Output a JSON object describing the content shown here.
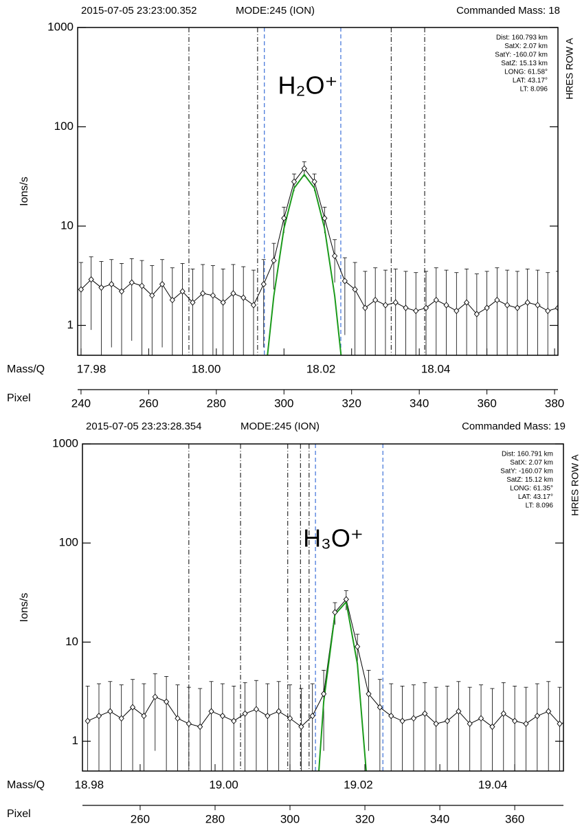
{
  "chart_data": [
    {
      "type": "line",
      "title_left": "2015-07-05 23:23:00.352",
      "title_mid": "MODE:245 (ION)",
      "title_right": "Commanded Mass: 18",
      "y_label": "Ions/s",
      "x_label": "Pixel",
      "x2_label": "Mass/Q",
      "annotation": "H₂O⁺",
      "side_label": "HRES ROW A",
      "info": [
        "Dist: 160.793 km",
        "SatX: 2.07 km",
        "SatY: -160.07 km",
        "SatZ: 15.13 km",
        "LONG: 61.58°",
        "LAT:  43.17°",
        "LT:   8.096"
      ],
      "log_y": true,
      "ylim": [
        0.5,
        1000
      ],
      "yticks": [
        1,
        10,
        100,
        1000
      ],
      "xlim": [
        239,
        381
      ],
      "xticks": [
        240,
        260,
        280,
        300,
        320,
        340,
        360,
        380
      ],
      "x2lim": [
        17.9776,
        18.0613
      ],
      "x2ticks": [
        {
          "value": 17.98,
          "label": "17.98"
        },
        {
          "value": 18.0,
          "label": "18.00"
        },
        {
          "value": 18.02,
          "label": "18.02"
        },
        {
          "value": 18.04,
          "label": "18.04"
        }
      ],
      "color": "#000000",
      "x": [
        240,
        243,
        246,
        249,
        252,
        255,
        258,
        261,
        264,
        267,
        270,
        273,
        276,
        279,
        282,
        285,
        288,
        291,
        294,
        297,
        300,
        303,
        306,
        309,
        312,
        315,
        318,
        321,
        324,
        327,
        330,
        333,
        336,
        339,
        342,
        345,
        348,
        351,
        354,
        357,
        360,
        363,
        366,
        369,
        372,
        375,
        378,
        381
      ],
      "values": [
        2.3,
        2.9,
        2.4,
        2.6,
        2.2,
        2.7,
        2.5,
        2.0,
        2.6,
        1.8,
        2.2,
        1.7,
        2.1,
        2.0,
        1.7,
        2.1,
        1.9,
        1.6,
        2.6,
        4.5,
        12,
        28,
        38,
        28,
        12,
        5,
        2.8,
        2.3,
        1.5,
        1.8,
        1.6,
        1.7,
        1.5,
        1.4,
        1.5,
        1.8,
        1.6,
        1.4,
        1.7,
        1.3,
        1.5,
        1.8,
        1.6,
        1.5,
        1.7,
        1.6,
        1.4,
        1.5
      ],
      "errors": [
        2,
        2,
        2,
        2,
        2,
        2,
        2,
        2,
        2,
        2,
        2,
        2,
        2,
        2,
        2,
        2,
        2,
        2,
        2,
        2.2,
        3.5,
        5.5,
        6.5,
        5.5,
        3.5,
        2.3,
        2,
        2,
        2,
        2,
        2,
        2,
        2,
        2,
        2,
        2,
        2,
        2,
        2,
        2,
        2,
        2,
        2,
        2,
        2,
        2,
        2,
        2
      ],
      "fit": {
        "color": "#1a9a1a",
        "values": [
          null,
          null,
          null,
          null,
          null,
          null,
          null,
          null,
          null,
          null,
          null,
          null,
          null,
          null,
          null,
          null,
          null,
          null,
          0.22,
          1.98,
          9.5,
          24.1,
          33,
          24.1,
          9.5,
          1.98,
          0.22,
          null,
          null,
          null,
          null,
          null,
          null,
          null,
          null,
          null,
          null,
          null,
          null,
          null,
          null,
          null,
          null,
          null,
          null,
          null,
          null,
          null
        ]
      },
      "cut_lines": {
        "color": "#000000",
        "values": [
          271.9,
          292.2,
          331.7,
          341.6
        ]
      },
      "window_lines": {
        "color": "#3a6fd8",
        "values": [
          294.2,
          316.8
        ]
      }
    },
    {
      "type": "line",
      "title_left": "2015-07-05 23:23:28.354",
      "title_mid": "MODE:245 (ION)",
      "title_right": "Commanded Mass: 19",
      "y_label": "Ions/s",
      "x_label": "Pixel",
      "x2_label": "Mass/Q",
      "annotation": "H₃O⁺",
      "side_label": "HRES ROW A",
      "info": [
        "Dist: 160.791 km",
        "SatX: 2.07 km",
        "SatY: -160.07 km",
        "SatZ: 15.12 km",
        "LONG: 61.35°",
        "LAT:  43.17°",
        "LT:   8.096"
      ],
      "log_y": true,
      "ylim": [
        0.5,
        1000
      ],
      "yticks": [
        1,
        10,
        100,
        1000
      ],
      "xlim": [
        244.6,
        373
      ],
      "xticks": [
        260,
        280,
        300,
        320,
        340,
        360
      ],
      "x2lim": [
        18.979,
        19.0505
      ],
      "x2ticks": [
        {
          "value": 18.98,
          "label": "18.98"
        },
        {
          "value": 19.0,
          "label": "19.00"
        },
        {
          "value": 19.02,
          "label": "19.02"
        },
        {
          "value": 19.04,
          "label": "19.04"
        }
      ],
      "color": "#000000",
      "x": [
        246,
        249,
        252,
        255,
        258,
        261,
        264,
        267,
        270,
        273,
        276,
        279,
        282,
        285,
        288,
        291,
        294,
        297,
        300,
        303,
        306,
        309,
        312,
        315,
        318,
        321,
        324,
        327,
        330,
        333,
        336,
        339,
        342,
        345,
        348,
        351,
        354,
        357,
        360,
        363,
        366,
        369,
        372,
        375
      ],
      "values": [
        1.6,
        1.8,
        2.0,
        1.7,
        2.2,
        1.8,
        2.8,
        2.5,
        1.7,
        1.5,
        1.4,
        2.0,
        1.8,
        1.6,
        1.9,
        2.1,
        1.8,
        2.0,
        1.7,
        1.4,
        1.8,
        3.0,
        20,
        27,
        9,
        3.0,
        2.2,
        1.8,
        1.6,
        1.7,
        1.9,
        1.5,
        1.6,
        2.0,
        1.5,
        1.7,
        1.4,
        1.9,
        1.6,
        1.5,
        1.8,
        2.0,
        1.5,
        1.6
      ],
      "errors": [
        2,
        2,
        2,
        2,
        2,
        2,
        2,
        2,
        2,
        2,
        2,
        2,
        2,
        2,
        2,
        2,
        2,
        2,
        2,
        2,
        2,
        2.2,
        5,
        6,
        3,
        2.2,
        2,
        2,
        2,
        2,
        2,
        2,
        2,
        2,
        2,
        2,
        2,
        2,
        2,
        2,
        2,
        2,
        2,
        2
      ],
      "fit": {
        "color": "#1a9a1a",
        "values": [
          null,
          null,
          null,
          null,
          null,
          null,
          null,
          null,
          null,
          null,
          null,
          null,
          null,
          null,
          null,
          null,
          null,
          null,
          null,
          null,
          0.06,
          2.5,
          19,
          25.4,
          6.0,
          0.25,
          null,
          null,
          null,
          null,
          null,
          null,
          null,
          null,
          null,
          null,
          null,
          null,
          null,
          null,
          null,
          null,
          null,
          null
        ]
      },
      "cut_lines": {
        "color": "#000000",
        "values": [
          273,
          286.8,
          299.4,
          302.8,
          305.1
        ]
      },
      "window_lines": {
        "color": "#3a6fd8",
        "values": [
          306.8,
          324.8
        ]
      }
    }
  ]
}
